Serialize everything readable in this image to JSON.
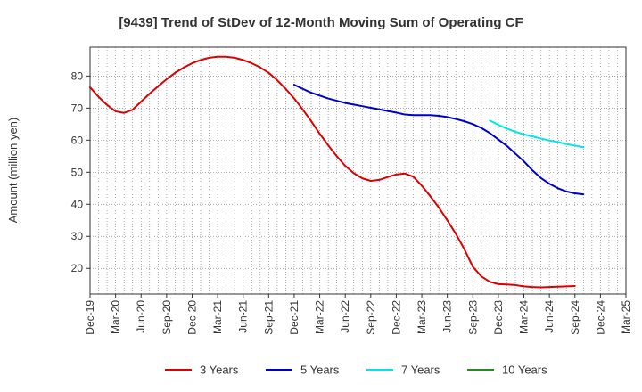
{
  "chart_data": {
    "type": "line",
    "title": "[9439]  Trend of StDev of 12-Month Moving Sum of Operating CF",
    "xlabel": "",
    "ylabel": "Amount (million yen)",
    "ylim": [
      12,
      89
    ],
    "yticks": [
      20,
      30,
      40,
      50,
      60,
      70,
      80
    ],
    "grid": true,
    "legend_position": "bottom",
    "x_tick_labels": [
      "Dec-19",
      "Mar-20",
      "Jun-20",
      "Sep-20",
      "Dec-20",
      "Mar-21",
      "Jun-21",
      "Sep-21",
      "Dec-21",
      "Mar-22",
      "Jun-22",
      "Sep-22",
      "Dec-22",
      "Mar-23",
      "Jun-23",
      "Sep-23",
      "Dec-23",
      "Mar-24",
      "Jun-24",
      "Sep-24",
      "Dec-24",
      "Mar-25"
    ],
    "months_per_tick": 3,
    "series": [
      {
        "name": "3 Years",
        "color": "#dd0000",
        "values": [
          76.5,
          73.5,
          71.0,
          69.0,
          68.5,
          69.5,
          72.0,
          74.5,
          76.8,
          79.0,
          81.0,
          82.6,
          84.0,
          85.0,
          85.7,
          86.0,
          86.0,
          85.7,
          85.0,
          84.0,
          82.7,
          81.0,
          78.7,
          76.0,
          73.0,
          69.6,
          65.9,
          62.0,
          58.4,
          55.0,
          52.0,
          49.7,
          48.1,
          47.3,
          47.6,
          48.5,
          49.3,
          49.6,
          48.6,
          45.8,
          42.5,
          39.0,
          35.0,
          30.8,
          26.0,
          20.5,
          17.5,
          15.8,
          15.1,
          15.0,
          14.8,
          14.4,
          14.2,
          14.1,
          14.2,
          14.3,
          14.4,
          14.5
        ]
      },
      {
        "name": "5 Years",
        "color": "#0000cc",
        "values": [
          null,
          null,
          null,
          null,
          null,
          null,
          null,
          null,
          null,
          null,
          null,
          null,
          null,
          null,
          null,
          null,
          null,
          null,
          null,
          null,
          null,
          null,
          null,
          null,
          77.3,
          76.0,
          74.8,
          73.9,
          73.0,
          72.3,
          71.6,
          71.1,
          70.6,
          70.1,
          69.6,
          69.1,
          68.6,
          68.0,
          67.8,
          67.8,
          67.8,
          67.6,
          67.2,
          66.6,
          65.9,
          65.0,
          63.8,
          62.2,
          60.2,
          58.2,
          55.8,
          53.4,
          50.6,
          48.2,
          46.4,
          45.0,
          44.0,
          43.4,
          43.1
        ]
      },
      {
        "name": "7 Years",
        "color": "#00e5e5",
        "values": [
          null,
          null,
          null,
          null,
          null,
          null,
          null,
          null,
          null,
          null,
          null,
          null,
          null,
          null,
          null,
          null,
          null,
          null,
          null,
          null,
          null,
          null,
          null,
          null,
          null,
          null,
          null,
          null,
          null,
          null,
          null,
          null,
          null,
          null,
          null,
          null,
          null,
          null,
          null,
          null,
          null,
          null,
          null,
          null,
          null,
          null,
          null,
          66.1,
          64.8,
          63.6,
          62.6,
          61.8,
          61.2,
          60.5,
          59.9,
          59.4,
          58.8,
          58.3,
          57.8
        ]
      },
      {
        "name": "10 Years",
        "color": "#228b22",
        "values": []
      }
    ]
  }
}
